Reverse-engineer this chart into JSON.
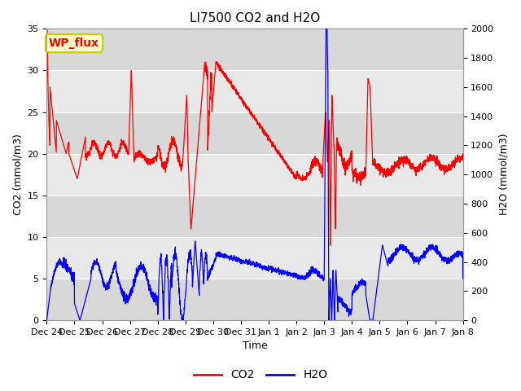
{
  "title": "LI7500 CO2 and H2O",
  "xlabel": "Time",
  "ylabel_left": "CO2 (mmol/m3)",
  "ylabel_right": "H2O (mmol/m3)",
  "ylim_left": [
    0,
    35
  ],
  "ylim_right": [
    0,
    2000
  ],
  "yticks_left": [
    0,
    5,
    10,
    15,
    20,
    25,
    30,
    35
  ],
  "yticks_right": [
    0,
    200,
    400,
    600,
    800,
    1000,
    1200,
    1400,
    1600,
    1800,
    2000
  ],
  "x_labels": [
    "Dec 24",
    "Dec 25",
    "Dec 26",
    "Dec 27",
    "Dec 28",
    "Dec 29",
    "Dec 30",
    "Dec 31",
    "Jan 1",
    "Jan 2",
    "Jan 3",
    "Jan 4",
    "Jan 5",
    "Jan 6",
    "Jan 7",
    "Jan 8"
  ],
  "legend_labels": [
    "CO2",
    "H2O"
  ],
  "legend_colors": [
    "red",
    "blue"
  ],
  "annotation_text": "WP_flux",
  "annotation_bbox_facecolor": "#ffffcc",
  "annotation_bbox_edgecolor": "#cccc00",
  "co2_color": "red",
  "h2o_color": "blue",
  "band1_color": "#d8d8d8",
  "band2_color": "#e8e8e8",
  "grid_color": "white",
  "title_fontsize": 11,
  "label_fontsize": 9,
  "tick_fontsize": 8
}
